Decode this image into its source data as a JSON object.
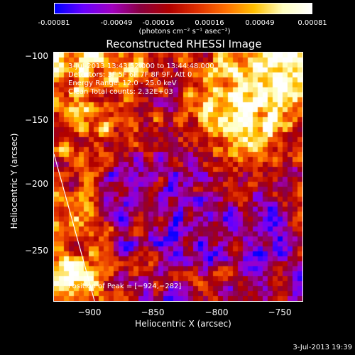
{
  "colorbar": {
    "tick_labels": [
      "-0.00081",
      "-0.00049",
      "-0.00016",
      "0.00016",
      "0.00049",
      "0.00081"
    ],
    "units": "(photons cm⁻² s⁻¹ asec⁻²)",
    "min": -0.00081,
    "max": 0.00081,
    "colors": [
      "#0000ff",
      "#6a00ff",
      "#a000c0",
      "#8a0040",
      "#b00000",
      "#e03000",
      "#ff7000",
      "#ffc000",
      "#ffffc0",
      "#ffffff"
    ]
  },
  "chart_data": {
    "type": "heatmap",
    "title": "Reconstructed RHESSI Image",
    "xlabel": "Heliocentric X (arcsec)",
    "ylabel": "Heliocentric Y (arcsec)",
    "xlim": [
      -932,
      -736
    ],
    "ylim": [
      -292,
      -96
    ],
    "xticks": [
      -900,
      -850,
      -800,
      -750
    ],
    "yticks": [
      -100,
      -150,
      -200,
      -250
    ],
    "xtick_labels": [
      "−900",
      "−850",
      "−800",
      "−750"
    ],
    "ytick_labels": [
      "−100",
      "−150",
      "−200",
      "−250"
    ],
    "annotations": [
      "3-Jul-2013 13:43:52.000 to 13:44:48.000",
      "Detectors: 3F 5F 6F 7F 8F 9F, Att 0",
      "Energy Range: 12.0 - 25.0 keV",
      "Clean     Total counts: 2.32E+03"
    ],
    "peak_label": "Position of Peak = [−924,−282]",
    "peak_position": [
      -924,
      -282
    ],
    "limb_line": [
      [
        -932,
        -176
      ],
      [
        -900,
        -292
      ]
    ]
  },
  "timestamp": "3-Jul-2013 19:39"
}
